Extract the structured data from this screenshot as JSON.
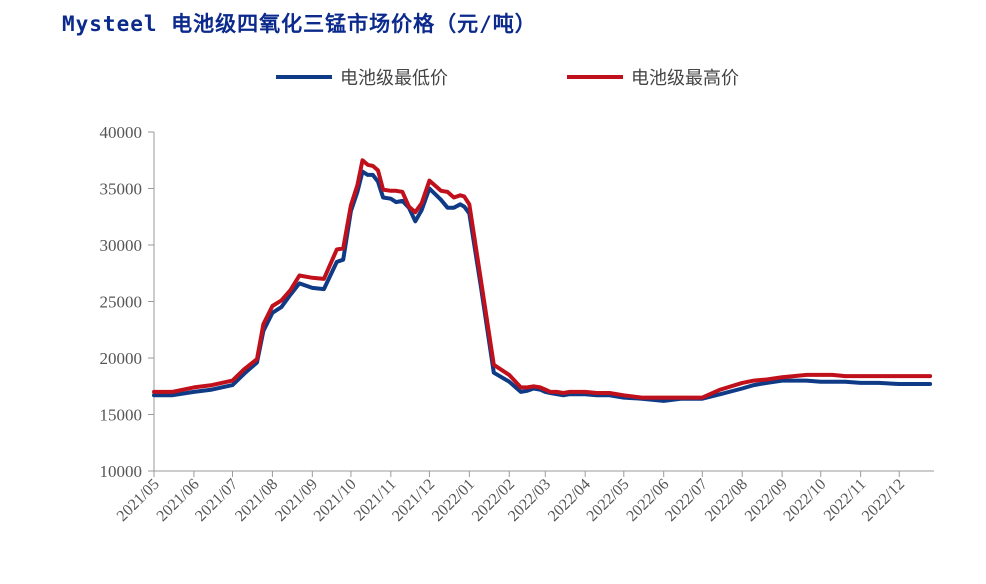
{
  "title": "Mysteel 电池级四氧化三锰市场价格（元/吨）",
  "chart_data": {
    "type": "line",
    "title": "Mysteel 电池级四氧化三锰市场价格（元/吨）",
    "xlabel": "",
    "ylabel": "",
    "ylim": [
      10000,
      40000
    ],
    "yticks": [
      10000,
      15000,
      20000,
      25000,
      30000,
      35000,
      40000
    ],
    "x_ticks": [
      "2021/05",
      "2021/06",
      "2021/07",
      "2021/08",
      "2021/09",
      "2021/10",
      "2021/11",
      "2021/12",
      "2022/01",
      "2022/02",
      "2022/03",
      "2022/04",
      "2022/05",
      "2022/06",
      "2022/07",
      "2022/08",
      "2022/09",
      "2022/10",
      "2022/11",
      "2022/12"
    ],
    "legend_position": "top",
    "grid": false,
    "x": [
      "2021-05-01",
      "2021-05-15",
      "2021-06-01",
      "2021-06-15",
      "2021-07-01",
      "2021-07-10",
      "2021-07-20",
      "2021-07-25",
      "2021-08-01",
      "2021-08-08",
      "2021-08-15",
      "2021-08-22",
      "2021-09-01",
      "2021-09-10",
      "2021-09-20",
      "2021-09-25",
      "2021-10-01",
      "2021-10-06",
      "2021-10-10",
      "2021-10-14",
      "2021-10-18",
      "2021-10-22",
      "2021-10-26",
      "2021-11-01",
      "2021-11-05",
      "2021-11-10",
      "2021-11-15",
      "2021-11-20",
      "2021-11-25",
      "2021-12-01",
      "2021-12-10",
      "2021-12-15",
      "2021-12-20",
      "2021-12-25",
      "2021-12-28",
      "2022-01-01",
      "2022-01-10",
      "2022-01-20",
      "2022-02-01",
      "2022-02-10",
      "2022-02-15",
      "2022-02-20",
      "2022-02-25",
      "2022-03-01",
      "2022-03-05",
      "2022-03-10",
      "2022-03-15",
      "2022-03-20",
      "2022-04-01",
      "2022-04-10",
      "2022-04-20",
      "2022-05-01",
      "2022-05-15",
      "2022-06-01",
      "2022-06-15",
      "2022-07-01",
      "2022-07-15",
      "2022-08-01",
      "2022-08-10",
      "2022-08-20",
      "2022-09-01",
      "2022-09-10",
      "2022-09-20",
      "2022-10-01",
      "2022-10-10",
      "2022-10-20",
      "2022-11-01",
      "2022-11-15",
      "2022-12-01",
      "2022-12-15",
      "2022-12-25"
    ],
    "series": [
      {
        "name": "电池级最低价",
        "color": "#0e3a86",
        "values": [
          16700,
          16700,
          17000,
          17200,
          17600,
          18600,
          19600,
          22400,
          24000,
          24500,
          25600,
          26600,
          26200,
          26100,
          28500,
          28700,
          33000,
          34700,
          36500,
          36200,
          36200,
          35600,
          34200,
          34100,
          33800,
          33900,
          33300,
          32100,
          33100,
          35000,
          34000,
          33300,
          33300,
          33600,
          33400,
          32800,
          26300,
          18700,
          17900,
          17000,
          17100,
          17300,
          17200,
          17000,
          16900,
          16800,
          16700,
          16800,
          16800,
          16700,
          16700,
          16500,
          16400,
          16200,
          16400,
          16400,
          16800,
          17300,
          17600,
          17800,
          18000,
          18000,
          18000,
          17900,
          17900,
          17900,
          17800,
          17800,
          17700,
          17700,
          17700
        ]
      },
      {
        "name": "电池级最高价",
        "color": "#c0101c",
        "values": [
          17000,
          17000,
          17400,
          17600,
          18000,
          19000,
          19900,
          23000,
          24600,
          25100,
          26000,
          27300,
          27100,
          27000,
          29600,
          29700,
          33500,
          35300,
          37500,
          37100,
          37000,
          36600,
          34900,
          34800,
          34800,
          34700,
          33400,
          32900,
          33700,
          35700,
          34800,
          34700,
          34200,
          34400,
          34300,
          33600,
          26900,
          19400,
          18500,
          17400,
          17400,
          17500,
          17400,
          17200,
          17000,
          17000,
          16900,
          17000,
          17000,
          16900,
          16900,
          16700,
          16500,
          16500,
          16500,
          16500,
          17200,
          17800,
          18000,
          18100,
          18300,
          18400,
          18500,
          18500,
          18500,
          18400,
          18400,
          18400,
          18400,
          18400,
          18400
        ]
      }
    ]
  }
}
